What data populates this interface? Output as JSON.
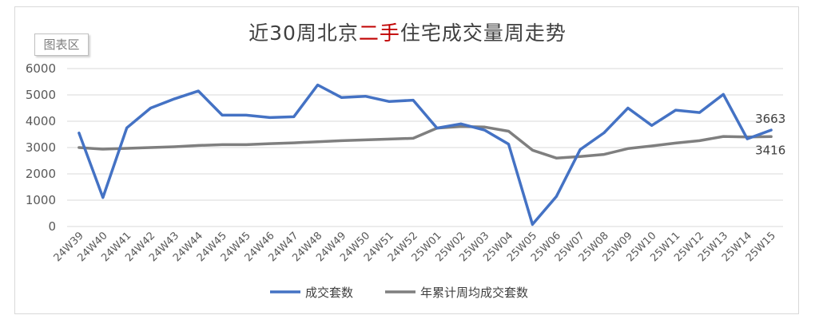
{
  "chart_data": {
    "type": "line",
    "title_parts": [
      "近30周北京",
      "二手",
      "住宅成交量周走势"
    ],
    "plot_area_label": "图表区",
    "categories": [
      "24W39",
      "24W40",
      "24W41",
      "24W42",
      "24W43",
      "24W44",
      "24W45",
      "24W45",
      "24W46",
      "24W47",
      "24W48",
      "24W49",
      "24W50",
      "24W51",
      "24W52",
      "25W01",
      "25W02",
      "25W03",
      "25W04",
      "25W05",
      "25W06",
      "25W07",
      "25W08",
      "25W09",
      "25W10",
      "25W11",
      "25W12",
      "25W13",
      "25W14",
      "25W15"
    ],
    "ylim": [
      0,
      6000
    ],
    "yticks": [
      0,
      1000,
      2000,
      3000,
      4000,
      5000,
      6000
    ],
    "grid": true,
    "legend_position": "bottom",
    "series": [
      {
        "name": "成交套数",
        "color": "#4472c4",
        "values": [
          3550,
          1100,
          3750,
          4500,
          4850,
          5150,
          4230,
          4230,
          4140,
          4170,
          5380,
          4900,
          4950,
          4750,
          4800,
          3740,
          3900,
          3660,
          3130,
          80,
          1140,
          2920,
          3560,
          4500,
          3840,
          4420,
          4330,
          5020,
          3330,
          3663
        ]
      },
      {
        "name": "年累计周均成交套数",
        "color": "#7f7f7f",
        "values": [
          3000,
          2940,
          2970,
          3000,
          3030,
          3080,
          3110,
          3110,
          3150,
          3180,
          3220,
          3260,
          3290,
          3320,
          3350,
          3740,
          3800,
          3780,
          3620,
          2900,
          2600,
          2660,
          2740,
          2960,
          3060,
          3170,
          3260,
          3420,
          3400,
          3416
        ]
      }
    ],
    "end_labels": [
      "3663",
      "3416"
    ]
  }
}
